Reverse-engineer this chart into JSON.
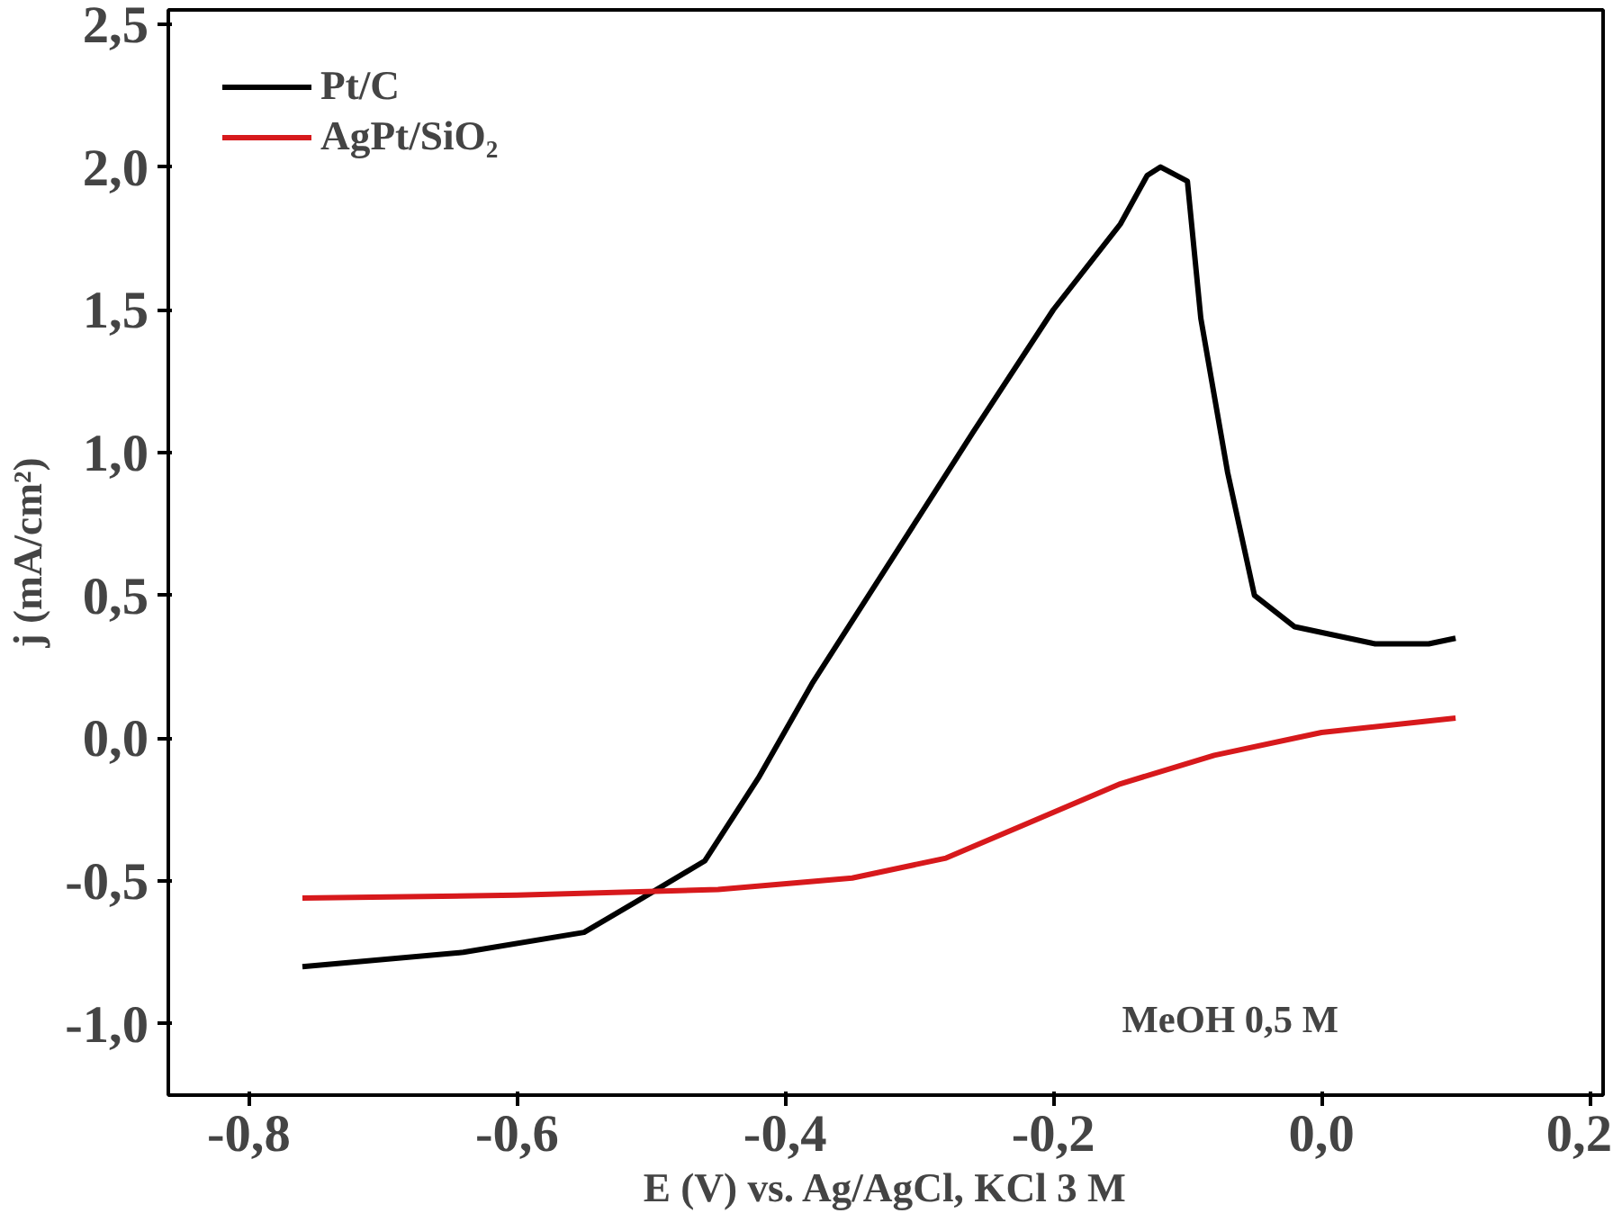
{
  "chart_data": {
    "type": "line",
    "xlabel": "E (V) vs. Ag/AgCl, KCl 3 M",
    "ylabel": "j (mA/cm²)",
    "xlim": [
      -0.86,
      0.21
    ],
    "ylim": [
      -1.25,
      2.55
    ],
    "xticks": [
      {
        "value": -0.8,
        "label": "-0,8"
      },
      {
        "value": -0.6,
        "label": "-0,6"
      },
      {
        "value": -0.4,
        "label": "-0,4"
      },
      {
        "value": -0.2,
        "label": "-0,2"
      },
      {
        "value": 0.0,
        "label": "0,0"
      },
      {
        "value": 0.2,
        "label": "0,2"
      }
    ],
    "yticks": [
      {
        "value": -1.0,
        "label": "-1,0"
      },
      {
        "value": -0.5,
        "label": "-0,5"
      },
      {
        "value": 0.0,
        "label": "0,0"
      },
      {
        "value": 0.5,
        "label": "0,5"
      },
      {
        "value": 1.0,
        "label": "1,0"
      },
      {
        "value": 1.5,
        "label": "1,5"
      },
      {
        "value": 2.0,
        "label": "2,0"
      },
      {
        "value": 2.5,
        "label": "2,5"
      }
    ],
    "grid": false,
    "legend": "top left",
    "line_style": "solid",
    "annotations": [
      "MeOH 0,5 M"
    ],
    "series": [
      {
        "name": "Pt/C",
        "color": "#000000",
        "x": [
          -0.76,
          -0.64,
          -0.55,
          -0.51,
          -0.46,
          -0.42,
          -0.38,
          -0.32,
          -0.26,
          -0.2,
          -0.15,
          -0.13,
          -0.12,
          -0.1,
          -0.09,
          -0.07,
          -0.05,
          -0.02,
          0.04,
          0.08,
          0.1
        ],
        "values": [
          -0.8,
          -0.75,
          -0.68,
          -0.57,
          -0.43,
          -0.14,
          0.19,
          0.63,
          1.07,
          1.5,
          1.8,
          1.97,
          2.0,
          1.95,
          1.47,
          0.93,
          0.5,
          0.39,
          0.33,
          0.33,
          0.35
        ]
      },
      {
        "name": "AgPt/SiO₂",
        "color": "#d7191c",
        "x": [
          -0.76,
          -0.6,
          -0.45,
          -0.35,
          -0.28,
          -0.22,
          -0.15,
          -0.08,
          0.0,
          0.1
        ],
        "values": [
          -0.56,
          -0.55,
          -0.53,
          -0.49,
          -0.42,
          -0.3,
          -0.16,
          -0.06,
          0.02,
          0.07
        ]
      }
    ]
  }
}
